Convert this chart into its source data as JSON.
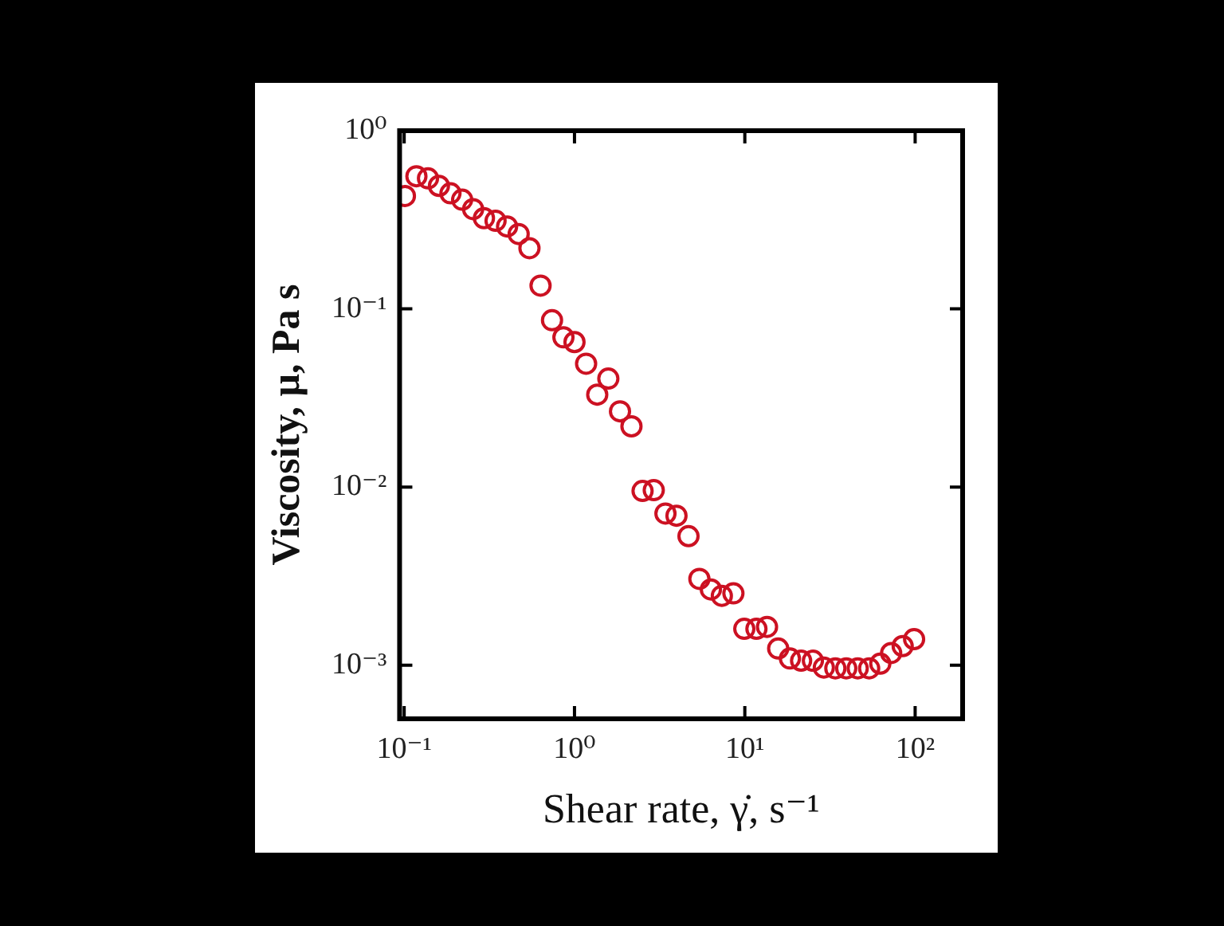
{
  "chart_data": {
    "type": "scatter",
    "xlabel": "Shear rate, γ̇, s⁻¹",
    "ylabel": "Viscosity, μ, Pa s",
    "log": "xy",
    "grid": false,
    "marker": "circle",
    "xlim": [
      0.094,
      190
    ],
    "ylim": [
      0.0005,
      1
    ],
    "xticks": [
      {
        "value": 0.1,
        "label": "10⁻¹"
      },
      {
        "value": 1,
        "label": "10⁰"
      },
      {
        "value": 10,
        "label": "10¹"
      },
      {
        "value": 100,
        "label": "10²"
      }
    ],
    "yticks": [
      {
        "value": 0.001,
        "label": "10⁻³"
      },
      {
        "value": 0.01,
        "label": "10⁻²"
      },
      {
        "value": 0.1,
        "label": "10⁻¹"
      },
      {
        "value": 1,
        "label": "10⁰"
      }
    ],
    "series": [
      {
        "color": "#cc1122",
        "x": [
          0.101,
          0.118,
          0.138,
          0.16,
          0.187,
          0.219,
          0.254,
          0.294,
          0.344,
          0.402,
          0.47,
          0.544,
          0.632,
          0.738,
          0.861,
          1.0,
          1.17,
          1.36,
          1.58,
          1.85,
          2.16,
          2.51,
          2.92,
          3.42,
          3.97,
          4.67,
          5.41,
          6.32,
          7.33,
          8.57,
          9.93,
          11.7,
          13.5,
          15.7,
          18.4,
          21.4,
          25.1,
          29.1,
          34.0,
          39.4,
          46.0,
          53.7,
          62.4,
          72.3,
          84.5,
          98.6
        ],
        "values": [
          0.43,
          0.555,
          0.54,
          0.49,
          0.445,
          0.41,
          0.363,
          0.323,
          0.312,
          0.29,
          0.263,
          0.219,
          0.135,
          0.0863,
          0.0692,
          0.0651,
          0.0492,
          0.033,
          0.0406,
          0.0266,
          0.0219,
          0.0095,
          0.0096,
          0.0071,
          0.0069,
          0.0053,
          0.00305,
          0.00266,
          0.00245,
          0.00253,
          0.0016,
          0.0016,
          0.00164,
          0.00124,
          0.00109,
          0.00106,
          0.00106,
          0.00097,
          0.00096,
          0.00096,
          0.00096,
          0.00096,
          0.00102,
          0.00117,
          0.00128,
          0.0014
        ]
      }
    ]
  }
}
